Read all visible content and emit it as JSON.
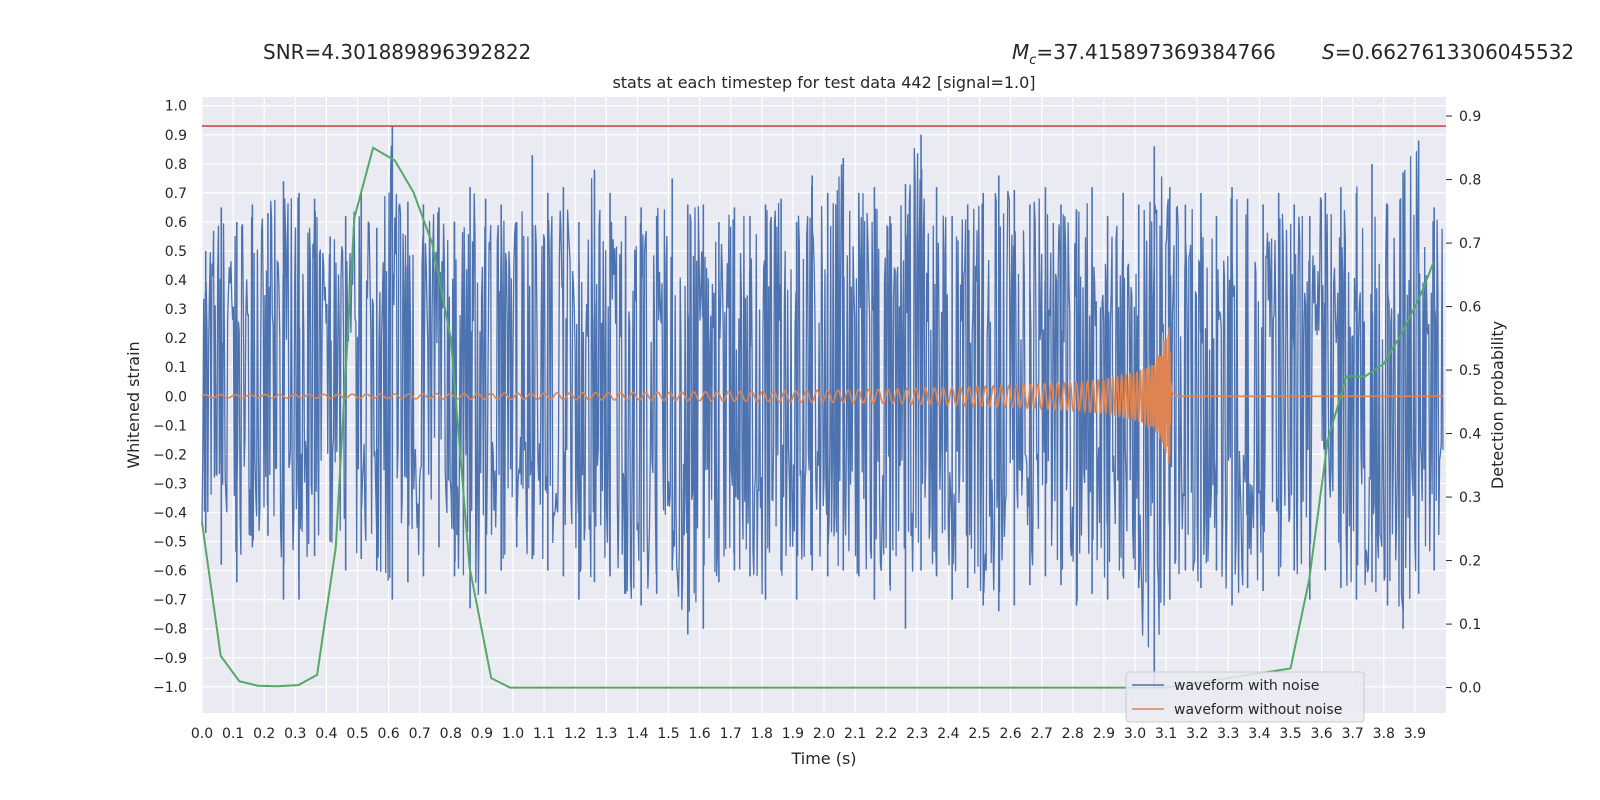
{
  "header": {
    "snr": "SNR=4.301889896392822",
    "mc_symbol": "M",
    "mc_sub": "c",
    "mc_value": "=37.415897369384766",
    "s_symbol": "S",
    "s_value": "=0.6627613306045532"
  },
  "chart_data": {
    "type": "line",
    "title": "stats at each timestep for test data 442 [signal=1.0]",
    "xlabel": "Time (s)",
    "ylabel": "Whitened strain",
    "y2label": "Detection probability",
    "xlim": [
      0.0,
      4.0
    ],
    "ylim": [
      -1.09,
      1.03
    ],
    "y2lim": [
      -0.04,
      0.93
    ],
    "x_ticks": [
      "0.0",
      "0.1",
      "0.2",
      "0.3",
      "0.4",
      "0.5",
      "0.6",
      "0.7",
      "0.8",
      "0.9",
      "1.0",
      "1.1",
      "1.2",
      "1.3",
      "1.4",
      "1.5",
      "1.6",
      "1.7",
      "1.8",
      "1.9",
      "2.0",
      "2.1",
      "2.2",
      "2.3",
      "2.4",
      "2.5",
      "2.6",
      "2.7",
      "2.8",
      "2.9",
      "3.0",
      "3.1",
      "3.2",
      "3.3",
      "3.4",
      "3.5",
      "3.6",
      "3.7",
      "3.8",
      "3.9"
    ],
    "y_ticks": [
      "1.0",
      "0.9",
      "0.8",
      "0.7",
      "0.6",
      "0.5",
      "0.4",
      "0.3",
      "0.2",
      "0.1",
      "0.0",
      "−0.1",
      "−0.2",
      "−0.3",
      "−0.4",
      "−0.5",
      "−0.6",
      "−0.7",
      "−0.8",
      "−0.9",
      "−1.0"
    ],
    "y2_ticks": [
      "0.9",
      "0.8",
      "0.7",
      "0.6",
      "0.5",
      "0.4",
      "0.3",
      "0.2",
      "0.1",
      "0.0"
    ],
    "threshold": 0.93,
    "legend_position": "lower-right",
    "grid": true,
    "series": [
      {
        "name": "waveform with noise",
        "axis": "left",
        "color": "#4c72b0",
        "x": [
          0.0,
          0.05,
          0.1,
          0.15,
          0.2,
          0.25,
          0.3,
          0.35,
          0.4,
          0.45,
          0.5,
          0.55,
          0.6,
          0.65,
          0.7,
          0.75,
          0.8,
          0.85,
          0.9,
          0.95,
          1.0,
          1.05,
          1.1,
          1.15,
          1.2,
          1.25,
          1.3,
          1.35,
          1.4,
          1.45,
          1.5,
          1.55,
          1.6,
          1.65,
          1.7,
          1.75,
          1.8,
          1.85,
          1.9,
          1.95,
          2.0,
          2.05,
          2.1,
          2.15,
          2.2,
          2.25,
          2.3,
          2.35,
          2.4,
          2.45,
          2.5,
          2.55,
          2.6,
          2.65,
          2.7,
          2.75,
          2.8,
          2.85,
          2.9,
          2.95,
          3.0,
          3.05,
          3.1,
          3.15,
          3.2,
          3.25,
          3.3,
          3.35,
          3.4,
          3.45,
          3.5,
          3.55,
          3.6,
          3.65,
          3.7,
          3.75,
          3.8,
          3.85,
          3.9,
          3.95
        ],
        "upper": [
          0.5,
          0.65,
          0.6,
          0.66,
          0.63,
          0.74,
          0.7,
          0.68,
          0.55,
          0.62,
          0.7,
          0.58,
          0.93,
          0.67,
          0.66,
          0.65,
          0.6,
          0.72,
          0.68,
          0.66,
          0.6,
          0.83,
          0.7,
          0.72,
          0.6,
          0.78,
          0.7,
          0.62,
          0.65,
          0.62,
          0.75,
          0.66,
          0.66,
          0.6,
          0.65,
          0.62,
          0.66,
          0.68,
          0.6,
          0.76,
          0.7,
          0.82,
          0.7,
          0.72,
          0.62,
          0.73,
          0.9,
          0.72,
          0.62,
          0.66,
          0.7,
          0.76,
          0.71,
          0.66,
          0.72,
          0.66,
          0.64,
          0.72,
          0.62,
          0.7,
          0.66,
          0.86,
          0.72,
          0.66,
          0.7,
          0.62,
          0.72,
          0.68,
          0.66,
          0.7,
          0.66,
          0.62,
          0.7,
          0.72,
          0.7,
          0.8,
          0.66,
          0.77,
          0.88,
          0.65
        ],
        "lower": [
          -0.47,
          -0.58,
          -0.64,
          -0.52,
          -0.48,
          -0.7,
          -0.7,
          -0.55,
          -0.5,
          -0.6,
          -0.56,
          -0.6,
          -0.7,
          -0.64,
          -0.62,
          -0.52,
          -0.62,
          -0.73,
          -0.68,
          -0.6,
          -0.52,
          -0.56,
          -0.6,
          -0.62,
          -0.7,
          -0.64,
          -0.62,
          -0.68,
          -0.72,
          -0.68,
          -0.6,
          -0.82,
          -0.8,
          -0.64,
          -0.6,
          -0.62,
          -0.7,
          -0.6,
          -0.7,
          -0.6,
          -0.62,
          -0.6,
          -0.62,
          -0.7,
          -0.65,
          -0.8,
          -0.6,
          -0.62,
          -0.7,
          -0.66,
          -0.72,
          -0.74,
          -0.72,
          -0.65,
          -0.62,
          -0.65,
          -0.72,
          -0.68,
          -0.7,
          -0.62,
          -0.66,
          -1.0,
          -0.7,
          -0.6,
          -0.66,
          -0.6,
          -0.72,
          -0.66,
          -0.67,
          -0.62,
          -0.6,
          -0.7,
          -0.6,
          -0.66,
          -0.7,
          -0.64,
          -0.72,
          -0.8,
          -0.68,
          -0.6
        ]
      },
      {
        "name": "waveform without noise",
        "axis": "left",
        "color": "#dd8452",
        "x": [
          0.0,
          0.3,
          0.6,
          0.9,
          1.2,
          1.5,
          1.8,
          2.1,
          2.4,
          2.6,
          2.8,
          2.9,
          2.95,
          3.0,
          3.03,
          3.06,
          3.08,
          3.1,
          3.11,
          3.12,
          3.14,
          3.2,
          3.5,
          3.99
        ],
        "amp": [
          0.005,
          0.006,
          0.008,
          0.01,
          0.012,
          0.014,
          0.018,
          0.022,
          0.03,
          0.038,
          0.048,
          0.06,
          0.072,
          0.085,
          0.1,
          0.12,
          0.15,
          0.22,
          0.24,
          0.03,
          0.0,
          0.0,
          0.0,
          0.0
        ]
      },
      {
        "name": "detection probability",
        "axis": "right",
        "color": "#55a868",
        "x": [
          0.0,
          0.06,
          0.12,
          0.18,
          0.24,
          0.31,
          0.37,
          0.43,
          0.49,
          0.55,
          0.62,
          0.68,
          0.74,
          0.8,
          0.86,
          0.93,
          0.99,
          3.1,
          3.5,
          3.56,
          3.62,
          3.68,
          3.74,
          3.8,
          3.86,
          3.92,
          3.96
        ],
        "y": [
          0.26,
          0.05,
          0.01,
          0.003,
          0.002,
          0.004,
          0.02,
          0.22,
          0.74,
          0.85,
          0.83,
          0.78,
          0.7,
          0.55,
          0.19,
          0.015,
          0.0,
          0.0,
          0.03,
          0.17,
          0.39,
          0.49,
          0.49,
          0.51,
          0.56,
          0.62,
          0.67
        ]
      }
    ]
  }
}
